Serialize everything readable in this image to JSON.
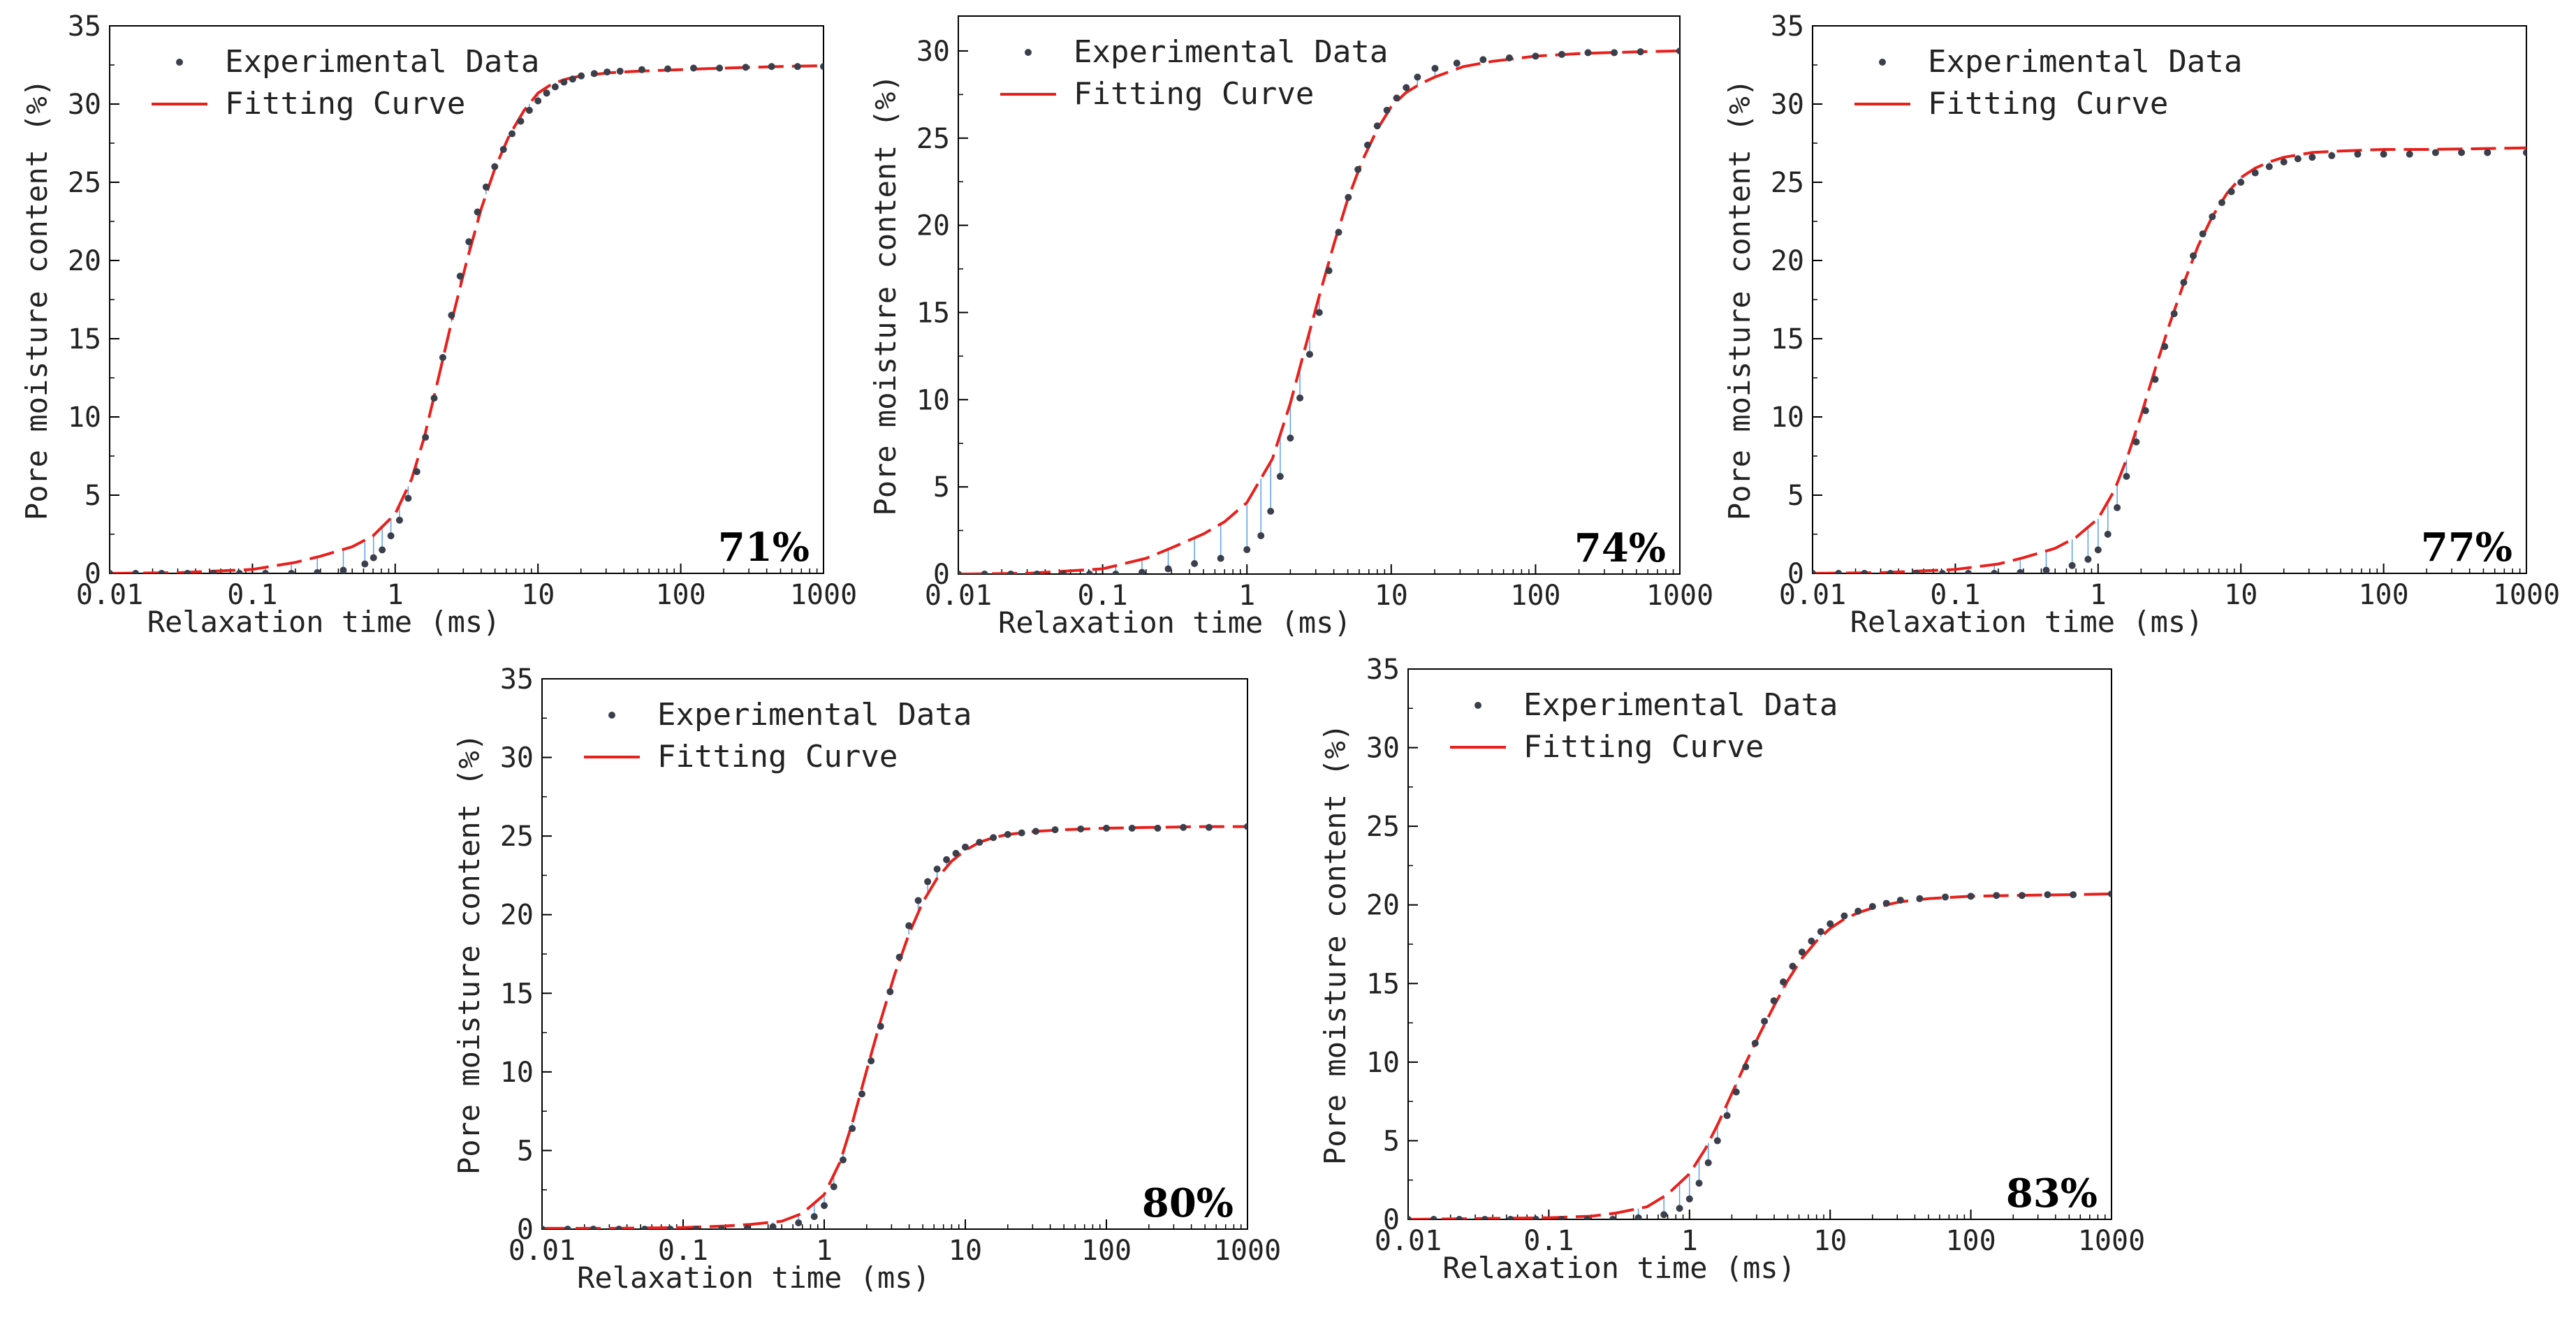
{
  "figure": {
    "legend": {
      "experimental": "Experimental Data",
      "fitting": "Fitting Curve"
    },
    "colors": {
      "experimental": "#3a3f4b",
      "fitting": "#e8201c",
      "residual": "#5aa0e8",
      "axis": "#000000"
    }
  },
  "chart_data": [
    {
      "type": "scatter",
      "label": "71%",
      "xlabel": "Relaxation time (ms)",
      "ylabel": "Pore moisture content (%)",
      "xscale": "log",
      "xlim": [
        0.01,
        1000
      ],
      "ylim": [
        0,
        35
      ],
      "xticks": [
        "0.01",
        "0.1",
        "1",
        "10",
        "100",
        "1000"
      ],
      "yticks": [
        "0",
        "5",
        "10",
        "15",
        "20",
        "25",
        "30",
        "35"
      ],
      "legend_position": "top-left",
      "grid": false,
      "series": [
        {
          "name": "Experimental Data",
          "x": [
            0.01,
            0.0152,
            0.0231,
            0.0351,
            0.0534,
            0.0811,
            0.1233,
            0.1874,
            0.2848,
            0.433,
            0.613,
            0.705,
            0.811,
            0.933,
            1.072,
            1.233,
            1.418,
            1.63,
            1.874,
            2.155,
            2.48,
            2.85,
            3.28,
            3.77,
            4.33,
            4.98,
            5.73,
            6.58,
            7.57,
            8.7,
            10.0,
            11.5,
            13.2,
            15.2,
            17.5,
            20.1,
            24.8,
            30.5,
            37.6,
            53.4,
            81.1,
            123,
            187,
            285,
            433,
            658,
            1000
          ],
          "y": [
            0.0,
            0.0,
            0.0,
            0.0,
            0.0,
            0.0,
            0.0,
            0.0,
            0.05,
            0.2,
            0.6,
            1.0,
            1.5,
            2.4,
            3.4,
            4.8,
            6.5,
            8.7,
            11.2,
            13.8,
            16.5,
            19.0,
            21.2,
            23.1,
            24.7,
            26.0,
            27.1,
            28.1,
            28.9,
            29.6,
            30.2,
            30.7,
            31.1,
            31.4,
            31.6,
            31.8,
            31.95,
            32.05,
            32.1,
            32.2,
            32.25,
            32.3,
            32.3,
            32.35,
            32.4,
            32.4,
            32.4
          ]
        },
        {
          "name": "Fitting Curve",
          "x": [
            0.01,
            0.0316,
            0.1,
            0.2,
            0.3,
            0.5,
            0.7,
            1.0,
            1.3,
            1.6,
            2.0,
            2.5,
            3.16,
            4.0,
            5.0,
            6.3,
            8.0,
            10.0,
            12.6,
            15.8,
            20.0,
            31.6,
            50.0,
            100,
            200,
            500,
            1000
          ],
          "y": [
            0.0,
            0.05,
            0.25,
            0.7,
            1.1,
            1.7,
            2.4,
            3.8,
            6.0,
            8.7,
            12.4,
            16.2,
            19.9,
            23.3,
            25.9,
            28.0,
            29.6,
            30.7,
            31.3,
            31.6,
            31.8,
            32.0,
            32.1,
            32.2,
            32.3,
            32.4,
            32.45
          ]
        }
      ]
    },
    {
      "type": "scatter",
      "label": "74%",
      "xlabel": "Relaxation time (ms)",
      "ylabel": "Pore moisture content (%)",
      "xscale": "log",
      "xlim": [
        0.01,
        1000
      ],
      "ylim": [
        0,
        32
      ],
      "xticks": [
        "0.01",
        "0.1",
        "1",
        "10",
        "100",
        "1000"
      ],
      "yticks": [
        "0",
        "5",
        "10",
        "15",
        "20",
        "25",
        "30"
      ],
      "legend_position": "top-left",
      "grid": false,
      "series": [
        {
          "name": "Experimental Data",
          "x": [
            0.01,
            0.0152,
            0.0231,
            0.0351,
            0.0534,
            0.0811,
            0.1233,
            0.1874,
            0.2848,
            0.433,
            0.658,
            1.0,
            1.25,
            1.46,
            1.7,
            2.0,
            2.33,
            2.72,
            3.17,
            3.7,
            4.32,
            5.04,
            5.88,
            6.86,
            8.0,
            9.34,
            10.9,
            12.7,
            15.2,
            20.1,
            28.5,
            43.3,
            65.8,
            100,
            152,
            231,
            351,
            534,
            1000
          ],
          "y": [
            0.0,
            0.0,
            0.0,
            0.0,
            0.0,
            0.0,
            0.0,
            0.1,
            0.3,
            0.6,
            0.9,
            1.4,
            2.2,
            3.6,
            5.6,
            7.8,
            10.1,
            12.6,
            15.0,
            17.4,
            19.6,
            21.6,
            23.2,
            24.6,
            25.7,
            26.6,
            27.3,
            27.9,
            28.5,
            29.0,
            29.3,
            29.5,
            29.6,
            29.7,
            29.8,
            29.9,
            29.9,
            29.95,
            30.0
          ]
        },
        {
          "name": "Fitting Curve",
          "x": [
            0.01,
            0.0316,
            0.1,
            0.2,
            0.3,
            0.5,
            0.7,
            1.0,
            1.5,
            2.0,
            2.5,
            3.16,
            4.0,
            5.0,
            6.3,
            8.0,
            10.0,
            12.6,
            15.8,
            20.0,
            31.6,
            50.0,
            100,
            200,
            500,
            1000
          ],
          "y": [
            0.0,
            0.05,
            0.3,
            0.9,
            1.5,
            2.3,
            3.0,
            4.1,
            6.6,
            9.8,
            12.8,
            15.9,
            18.9,
            21.5,
            23.7,
            25.5,
            26.8,
            27.6,
            28.1,
            28.5,
            29.1,
            29.4,
            29.7,
            29.85,
            29.95,
            30.0
          ]
        }
      ]
    },
    {
      "type": "scatter",
      "label": "77%",
      "xlabel": "Relaxation time (ms)",
      "ylabel": "Pore moisture content (%)",
      "xscale": "log",
      "xlim": [
        0.01,
        1000
      ],
      "ylim": [
        0,
        35
      ],
      "xticks": [
        "0.01",
        "0.1",
        "1",
        "10",
        "100",
        "1000"
      ],
      "yticks": [
        "0",
        "5",
        "10",
        "15",
        "20",
        "25",
        "30",
        "35"
      ],
      "legend_position": "top-left",
      "grid": false,
      "series": [
        {
          "name": "Experimental Data",
          "x": [
            0.01,
            0.0152,
            0.0231,
            0.0351,
            0.0534,
            0.0811,
            0.1233,
            0.1874,
            0.2848,
            0.433,
            0.658,
            0.85,
            1.0,
            1.17,
            1.36,
            1.58,
            1.85,
            2.15,
            2.51,
            2.93,
            3.41,
            3.98,
            4.64,
            5.41,
            6.31,
            7.36,
            8.58,
            10.0,
            12.6,
            15.8,
            20.0,
            25.1,
            31.6,
            43.3,
            65.8,
            100,
            152,
            231,
            351,
            534,
            1000
          ],
          "y": [
            0.0,
            0.0,
            0.0,
            0.0,
            0.0,
            0.0,
            0.0,
            0.0,
            0.05,
            0.2,
            0.5,
            0.9,
            1.5,
            2.5,
            4.2,
            6.2,
            8.4,
            10.4,
            12.4,
            14.5,
            16.6,
            18.6,
            20.3,
            21.7,
            22.8,
            23.7,
            24.4,
            25.0,
            25.6,
            26.0,
            26.3,
            26.5,
            26.6,
            26.7,
            26.8,
            26.8,
            26.8,
            26.9,
            26.9,
            26.9,
            26.9
          ]
        },
        {
          "name": "Fitting Curve",
          "x": [
            0.01,
            0.0316,
            0.1,
            0.2,
            0.3,
            0.5,
            0.7,
            1.0,
            1.3,
            1.6,
            2.0,
            2.5,
            3.16,
            4.0,
            5.0,
            6.3,
            8.0,
            10.0,
            12.6,
            15.8,
            20.0,
            31.6,
            50.0,
            100,
            200,
            500,
            1000
          ],
          "y": [
            0.0,
            0.05,
            0.25,
            0.6,
            1.0,
            1.6,
            2.3,
            3.5,
            5.3,
            7.4,
            10.1,
            13.0,
            15.9,
            18.6,
            20.9,
            22.8,
            24.3,
            25.3,
            25.9,
            26.3,
            26.6,
            26.9,
            27.0,
            27.1,
            27.1,
            27.15,
            27.2
          ]
        }
      ]
    },
    {
      "type": "scatter",
      "label": "80%",
      "xlabel": "Relaxation time (ms)",
      "ylabel": "Pore moisture content (%)",
      "xscale": "log",
      "xlim": [
        0.01,
        1000
      ],
      "ylim": [
        0,
        35
      ],
      "xticks": [
        "0.01",
        "0.1",
        "1",
        "10",
        "100",
        "1000"
      ],
      "yticks": [
        "0",
        "5",
        "10",
        "15",
        "20",
        "25",
        "30",
        "35"
      ],
      "legend_position": "top-left",
      "grid": false,
      "series": [
        {
          "name": "Experimental Data",
          "x": [
            0.01,
            0.0152,
            0.0231,
            0.0351,
            0.0534,
            0.0811,
            0.1233,
            0.1874,
            0.2848,
            0.433,
            0.658,
            0.85,
            1.0,
            1.17,
            1.36,
            1.58,
            1.85,
            2.15,
            2.51,
            2.93,
            3.41,
            3.98,
            4.64,
            5.41,
            6.31,
            7.36,
            8.58,
            10.0,
            12.6,
            15.8,
            20.0,
            25.1,
            31.6,
            43.3,
            65.8,
            100,
            152,
            231,
            351,
            534,
            1000
          ],
          "y": [
            0.0,
            0.0,
            0.0,
            0.0,
            0.0,
            0.0,
            0.0,
            0.0,
            0.05,
            0.15,
            0.4,
            0.8,
            1.5,
            2.7,
            4.4,
            6.4,
            8.6,
            10.7,
            12.9,
            15.1,
            17.3,
            19.3,
            20.9,
            22.1,
            22.9,
            23.5,
            23.9,
            24.3,
            24.6,
            24.9,
            25.1,
            25.2,
            25.3,
            25.4,
            25.45,
            25.5,
            25.5,
            25.5,
            25.55,
            25.55,
            25.6
          ]
        },
        {
          "name": "Fitting Curve",
          "x": [
            0.01,
            0.0316,
            0.1,
            0.2,
            0.3,
            0.5,
            0.7,
            1.0,
            1.3,
            1.6,
            2.0,
            2.5,
            3.16,
            4.0,
            5.0,
            6.3,
            8.0,
            10.0,
            12.6,
            15.8,
            20.0,
            31.6,
            50.0,
            100,
            200,
            500,
            1000
          ],
          "y": [
            0.05,
            0.05,
            0.1,
            0.2,
            0.3,
            0.5,
            1.0,
            2.2,
            4.3,
            6.9,
            10.1,
            13.2,
            16.2,
            18.8,
            20.8,
            22.3,
            23.4,
            24.1,
            24.6,
            24.9,
            25.1,
            25.3,
            25.4,
            25.5,
            25.55,
            25.6,
            25.6
          ]
        }
      ]
    },
    {
      "type": "scatter",
      "label": "83%",
      "xlabel": "Relaxation time (ms)",
      "ylabel": "Pore moisture content (%)",
      "xscale": "log",
      "xlim": [
        0.01,
        1000
      ],
      "ylim": [
        0,
        35
      ],
      "xticks": [
        "0.01",
        "0.1",
        "1",
        "10",
        "100",
        "1000"
      ],
      "yticks": [
        "0",
        "5",
        "10",
        "15",
        "20",
        "25",
        "30",
        "35"
      ],
      "legend_position": "top-left",
      "grid": false,
      "series": [
        {
          "name": "Experimental Data",
          "x": [
            0.01,
            0.0152,
            0.0231,
            0.0351,
            0.0534,
            0.0811,
            0.1233,
            0.1874,
            0.2848,
            0.433,
            0.658,
            0.85,
            1.0,
            1.17,
            1.36,
            1.58,
            1.85,
            2.15,
            2.51,
            2.93,
            3.41,
            3.98,
            4.64,
            5.41,
            6.31,
            7.36,
            8.58,
            10.0,
            12.6,
            15.8,
            20.0,
            25.1,
            31.6,
            43.3,
            65.8,
            100,
            152,
            231,
            351,
            534,
            1000
          ],
          "y": [
            0.0,
            0.0,
            0.0,
            0.0,
            0.0,
            0.0,
            0.0,
            0.0,
            0.0,
            0.1,
            0.3,
            0.7,
            1.3,
            2.3,
            3.6,
            5.0,
            6.6,
            8.1,
            9.7,
            11.2,
            12.6,
            13.9,
            15.1,
            16.1,
            17.0,
            17.7,
            18.3,
            18.8,
            19.3,
            19.6,
            19.9,
            20.1,
            20.3,
            20.4,
            20.5,
            20.55,
            20.6,
            20.6,
            20.65,
            20.65,
            20.7
          ]
        },
        {
          "name": "Fitting Curve",
          "x": [
            0.01,
            0.0316,
            0.1,
            0.2,
            0.3,
            0.5,
            0.7,
            1.0,
            1.3,
            1.6,
            2.0,
            2.5,
            3.16,
            4.0,
            5.0,
            6.3,
            8.0,
            10.0,
            12.6,
            15.8,
            20.0,
            31.6,
            50.0,
            100,
            200,
            500,
            1000
          ],
          "y": [
            0.0,
            0.05,
            0.1,
            0.2,
            0.4,
            0.8,
            1.6,
            2.9,
            4.5,
            6.1,
            8.0,
            9.9,
            11.8,
            13.6,
            15.2,
            16.6,
            17.7,
            18.5,
            19.1,
            19.5,
            19.8,
            20.2,
            20.4,
            20.55,
            20.6,
            20.65,
            20.7
          ]
        }
      ]
    }
  ]
}
